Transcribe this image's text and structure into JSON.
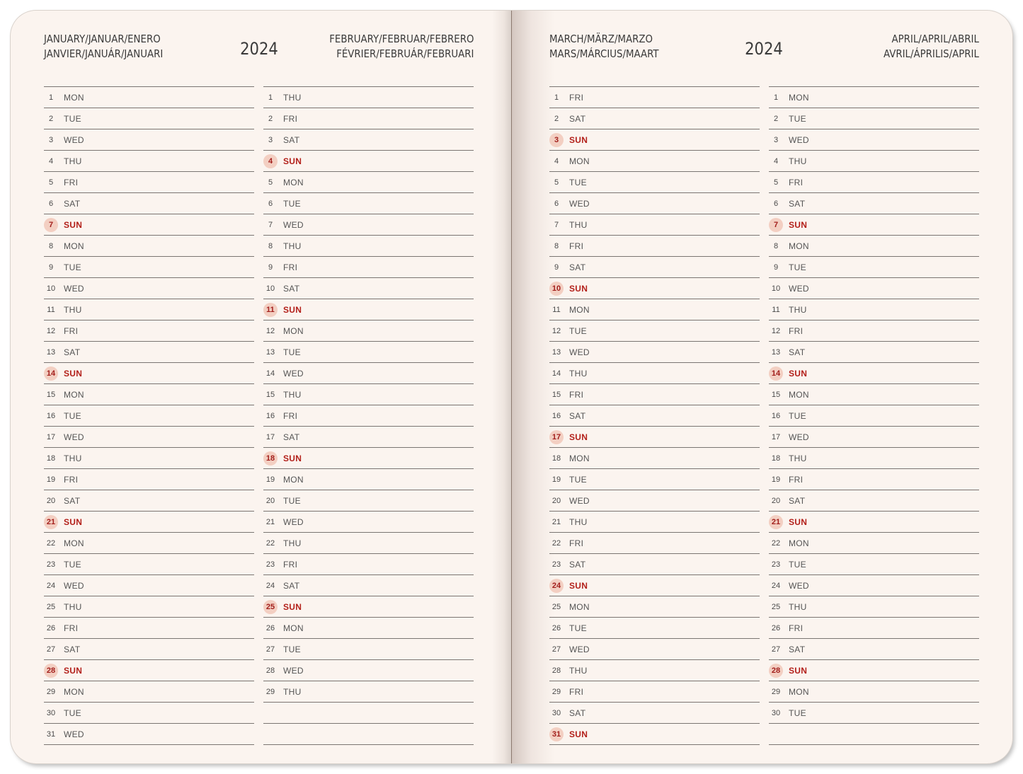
{
  "year_left": "2024",
  "year_right": "2024",
  "headers": {
    "jan_line1": "JANUARY/JANUAR/ENERO",
    "jan_line2": "JANVIER/JANUÁR/JANUARI",
    "feb_line1": "FEBRUARY/FEBRUAR/FEBRERO",
    "feb_line2": "FÉVRIER/FEBRUÁR/FEBRUARI",
    "mar_line1": "MARCH/MÄRZ/MARZO",
    "mar_line2": "MARS/MÁRCIUS/MAART",
    "apr_line1": "APRIL/APRIL/ABRIL",
    "apr_line2": "AVRIL/ÁPRILIS/APRIL"
  },
  "colors": {
    "sunday_text": "#b3201a",
    "sunday_circle": "#f3cfc2",
    "paper": "#fbf4ef"
  },
  "months": [
    {
      "id": "january",
      "first_weekday": 0,
      "days": 31
    },
    {
      "id": "february",
      "first_weekday": 3,
      "days": 29
    },
    {
      "id": "march",
      "first_weekday": 4,
      "days": 31
    },
    {
      "id": "april",
      "first_weekday": 0,
      "days": 30
    }
  ],
  "weekday_labels": [
    "MON",
    "TUE",
    "WED",
    "THU",
    "FRI",
    "SAT",
    "SUN"
  ]
}
